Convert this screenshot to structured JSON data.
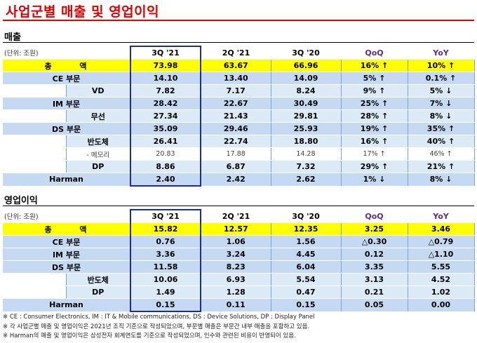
{
  "title": "사업군별 매출 및 영업이익",
  "revenue": {
    "section_title": "매출",
    "unit": "(단위: 조원)",
    "headers": [
      "3Q '21",
      "2Q '21",
      "3Q '20",
      "QoQ",
      "YoY"
    ],
    "rows": [
      {
        "type": "total",
        "label": "총 액",
        "sublabel": "",
        "values": [
          "73.98",
          "63.67",
          "66.96",
          "16% ↑",
          "10% ↑"
        ]
      },
      {
        "type": "seg",
        "label": "CE 부문",
        "sublabel": "",
        "values": [
          "14.10",
          "13.40",
          "14.09",
          "5% ↑",
          "0.1% ↑"
        ]
      },
      {
        "type": "sub",
        "label": "",
        "sublabel": "VD",
        "values": [
          "7.82",
          "7.17",
          "8.24",
          "9% ↑",
          "5% ↓"
        ]
      },
      {
        "type": "seg",
        "label": "IM 부문",
        "sublabel": "",
        "values": [
          "28.42",
          "22.67",
          "30.49",
          "25% ↑",
          "7% ↓"
        ]
      },
      {
        "type": "sub",
        "label": "",
        "sublabel": "무선",
        "values": [
          "27.34",
          "21.43",
          "29.81",
          "28% ↑",
          "8% ↓"
        ]
      },
      {
        "type": "seg",
        "label": "DS 부문",
        "sublabel": "",
        "values": [
          "35.09",
          "29.46",
          "25.93",
          "19% ↑",
          "35% ↑"
        ]
      },
      {
        "type": "sub",
        "label": "",
        "sublabel": "반도체",
        "values": [
          "26.41",
          "22.74",
          "18.80",
          "16% ↑",
          "40% ↑"
        ]
      },
      {
        "type": "mem",
        "label": "",
        "sublabel": "- 메모리",
        "values": [
          "20.83",
          "17.88",
          "14.28",
          "17% ↑",
          "46% ↑"
        ]
      },
      {
        "type": "sub",
        "label": "",
        "sublabel": "DP",
        "values": [
          "8.86",
          "6.87",
          "7.32",
          "29% ↑",
          "21% ↑"
        ]
      },
      {
        "type": "harm",
        "label": "Harman",
        "sublabel": "",
        "values": [
          "2.40",
          "2.42",
          "2.62",
          "1% ↓",
          "8% ↓"
        ]
      }
    ]
  },
  "operating_profit": {
    "section_title": "영업이익",
    "unit": "(단위: 조원)",
    "headers": [
      "3Q '21",
      "2Q '21",
      "3Q '20",
      "QoQ",
      "YoY"
    ],
    "rows": [
      {
        "type": "total",
        "label": "총 액",
        "sublabel": "",
        "values": [
          "15.82",
          "12.57",
          "12.35",
          "3.25",
          "3.46"
        ]
      },
      {
        "type": "seg",
        "label": "CE 부문",
        "sublabel": "",
        "values": [
          "0.76",
          "1.06",
          "1.56",
          "△0.30",
          "△0.79"
        ]
      },
      {
        "type": "seg",
        "label": "IM 부문",
        "sublabel": "",
        "values": [
          "3.36",
          "3.24",
          "4.45",
          "0.12",
          "△1.10"
        ]
      },
      {
        "type": "seg",
        "label": "DS 부문",
        "sublabel": "",
        "values": [
          "11.58",
          "8.23",
          "6.04",
          "3.35",
          "5.55"
        ]
      },
      {
        "type": "sub",
        "label": "",
        "sublabel": "반도체",
        "values": [
          "10.06",
          "6.93",
          "5.54",
          "3.13",
          "4.52"
        ]
      },
      {
        "type": "sub",
        "label": "",
        "sublabel": "DP",
        "values": [
          "1.49",
          "1.28",
          "0.47",
          "0.21",
          "1.02"
        ]
      },
      {
        "type": "harm",
        "label": "Harman",
        "sublabel": "",
        "values": [
          "0.15",
          "0.11",
          "0.15",
          "0.05",
          "0.00"
        ]
      }
    ]
  },
  "notes": [
    "※ CE : Consumer Electronics,  IM : IT & Mobile communications,  DS : Device Solutions,  DP : Display Panel",
    "※ 각 사업군별 매출 및 영업이익은 2021년 조직 기준으로 작성되었으며, 부문별 매출은 부문간 내부 매출을 포함하고 있음.",
    "※ Harman의 매출 및 영업이익은 삼성전자 회계연도를 기준으로 작성되었으며, 인수와 관련된 비용이 반영되어 있음."
  ]
}
